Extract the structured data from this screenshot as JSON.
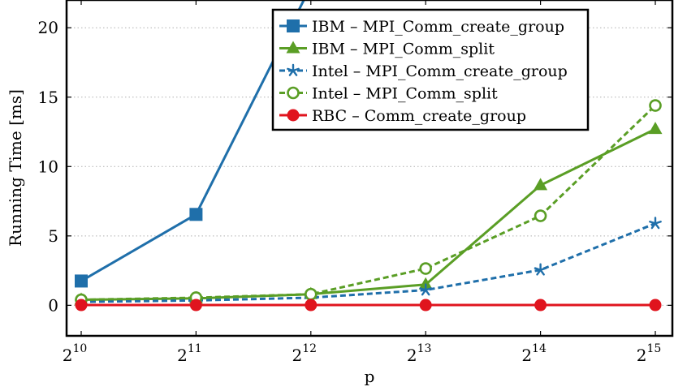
{
  "chart_data": {
    "type": "line",
    "xlabel": "p",
    "ylabel": "Running Time [ms]",
    "x_tick_labels": [
      {
        "base": "2",
        "exp": "10"
      },
      {
        "base": "2",
        "exp": "11"
      },
      {
        "base": "2",
        "exp": "12"
      },
      {
        "base": "2",
        "exp": "13"
      },
      {
        "base": "2",
        "exp": "14"
      },
      {
        "base": "2",
        "exp": "15"
      }
    ],
    "x": [
      1024,
      2048,
      4096,
      8192,
      16384,
      32768
    ],
    "x_scale": "log2",
    "y_ticks": [
      "0",
      "5",
      "10",
      "15",
      "20"
    ],
    "ylim": [
      -2.2,
      22
    ],
    "grid": "horizontal dotted",
    "legend_position": "top-right",
    "series": [
      {
        "name": "IBM  – MPI_Comm_create_group",
        "color": "#1f6faa",
        "dash": "solid",
        "marker": "square",
        "values": [
          1.75,
          6.55,
          23.0,
          null,
          null,
          null
        ]
      },
      {
        "name": "IBM  – MPI_Comm_split",
        "color": "#5a9e25",
        "dash": "solid",
        "marker": "triangle",
        "values": [
          0.4,
          0.5,
          0.8,
          1.5,
          8.65,
          12.7
        ]
      },
      {
        "name": "Intel – MPI_Comm_create_group",
        "color": "#1f6faa",
        "dash": "dashed",
        "marker": "star",
        "values": [
          0.25,
          0.35,
          0.55,
          1.1,
          2.55,
          5.9
        ]
      },
      {
        "name": "Intel – MPI_Comm_split",
        "color": "#5a9e25",
        "dash": "dashed",
        "marker": "circle-open",
        "values": [
          0.4,
          0.55,
          0.8,
          2.65,
          6.45,
          14.4
        ]
      },
      {
        "name": "RBC – Comm_create_group",
        "color": "#e0141e",
        "dash": "solid",
        "marker": "circle",
        "values": [
          0.02,
          0.02,
          0.02,
          0.02,
          0.02,
          0.02
        ]
      }
    ]
  }
}
